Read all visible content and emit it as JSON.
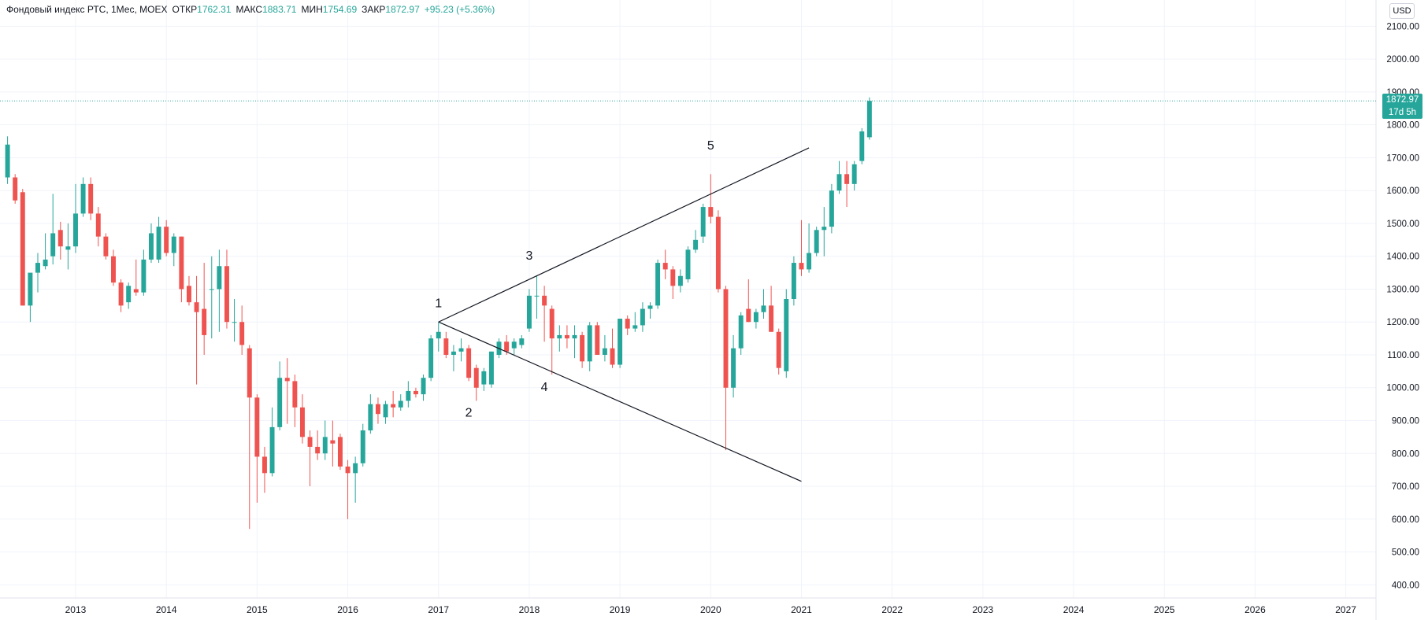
{
  "legend": {
    "title": "Фондовый индекс РТС, 1Мес, MOEX",
    "open_label": "ОТКР",
    "open": "1762.31",
    "high_label": "МАКС",
    "high": "1883.71",
    "low_label": "МИН",
    "low": "1754.69",
    "close_label": "ЗАКР",
    "close": "1872.97",
    "change": "+95.23 (+5.36%)"
  },
  "currency": "USD",
  "last_price": {
    "value": "1872.97",
    "countdown": "17d 5h"
  },
  "colors": {
    "up": "#26a69a",
    "down": "#ef5350",
    "grid": "#f0f3fa",
    "line": "#131722"
  },
  "chart_data": {
    "type": "candlestick",
    "interval": "1M",
    "ylim": [
      360,
      2180
    ],
    "y_ticks": [
      "2100.00",
      "2000.00",
      "1900.00",
      "1800.00",
      "1700.00",
      "1600.00",
      "1500.00",
      "1400.00",
      "1300.00",
      "1200.00",
      "1100.00",
      "1000.00",
      "900.00",
      "800.00",
      "700.00",
      "600.00",
      "500.00",
      "400.00"
    ],
    "x_ticks": [
      "2013",
      "2014",
      "2015",
      "2016",
      "2017",
      "2018",
      "2019",
      "2020",
      "2021",
      "2022",
      "2023",
      "2024",
      "2025",
      "2026",
      "2027"
    ],
    "x_range": [
      "2012-03",
      "2027-05"
    ],
    "grid": true,
    "candles": [
      {
        "t": "2012-04",
        "o": 1640,
        "h": 1765,
        "l": 1620,
        "c": 1740
      },
      {
        "t": "2012-05",
        "o": 1640,
        "h": 1650,
        "l": 1560,
        "c": 1570
      },
      {
        "t": "2012-06",
        "o": 1595,
        "h": 1605,
        "l": 1250,
        "c": 1250
      },
      {
        "t": "2012-07",
        "o": 1250,
        "h": 1340,
        "l": 1200,
        "c": 1350
      },
      {
        "t": "2012-08",
        "o": 1350,
        "h": 1410,
        "l": 1290,
        "c": 1380
      },
      {
        "t": "2012-09",
        "o": 1370,
        "h": 1470,
        "l": 1360,
        "c": 1390
      },
      {
        "t": "2012-10",
        "o": 1400,
        "h": 1590,
        "l": 1375,
        "c": 1470
      },
      {
        "t": "2012-11",
        "o": 1480,
        "h": 1505,
        "l": 1390,
        "c": 1430
      },
      {
        "t": "2012-12",
        "o": 1420,
        "h": 1500,
        "l": 1360,
        "c": 1430
      },
      {
        "t": "2013-01",
        "o": 1430,
        "h": 1620,
        "l": 1410,
        "c": 1530
      },
      {
        "t": "2013-02",
        "o": 1530,
        "h": 1640,
        "l": 1520,
        "c": 1620
      },
      {
        "t": "2013-03",
        "o": 1620,
        "h": 1640,
        "l": 1510,
        "c": 1530
      },
      {
        "t": "2013-04",
        "o": 1530,
        "h": 1550,
        "l": 1430,
        "c": 1460
      },
      {
        "t": "2013-05",
        "o": 1460,
        "h": 1470,
        "l": 1390,
        "c": 1400
      },
      {
        "t": "2013-06",
        "o": 1400,
        "h": 1420,
        "l": 1310,
        "c": 1320
      },
      {
        "t": "2013-07",
        "o": 1320,
        "h": 1330,
        "l": 1230,
        "c": 1250
      },
      {
        "t": "2013-08",
        "o": 1260,
        "h": 1320,
        "l": 1240,
        "c": 1310
      },
      {
        "t": "2013-09",
        "o": 1300,
        "h": 1390,
        "l": 1280,
        "c": 1290
      },
      {
        "t": "2013-10",
        "o": 1290,
        "h": 1420,
        "l": 1280,
        "c": 1390
      },
      {
        "t": "2013-11",
        "o": 1390,
        "h": 1500,
        "l": 1380,
        "c": 1470
      },
      {
        "t": "2013-12",
        "o": 1390,
        "h": 1520,
        "l": 1380,
        "c": 1490
      },
      {
        "t": "2014-01",
        "o": 1490,
        "h": 1510,
        "l": 1400,
        "c": 1410
      },
      {
        "t": "2014-02",
        "o": 1410,
        "h": 1470,
        "l": 1370,
        "c": 1460
      },
      {
        "t": "2014-03",
        "o": 1460,
        "h": 1460,
        "l": 1260,
        "c": 1300
      },
      {
        "t": "2014-04",
        "o": 1310,
        "h": 1340,
        "l": 1250,
        "c": 1260
      },
      {
        "t": "2014-05",
        "o": 1260,
        "h": 1340,
        "l": 1010,
        "c": 1230
      },
      {
        "t": "2014-06",
        "o": 1240,
        "h": 1380,
        "l": 1100,
        "c": 1160
      },
      {
        "t": "2014-07",
        "o": 1300,
        "h": 1400,
        "l": 1150,
        "c": 1300
      },
      {
        "t": "2014-08",
        "o": 1300,
        "h": 1420,
        "l": 1170,
        "c": 1370
      },
      {
        "t": "2014-09",
        "o": 1370,
        "h": 1420,
        "l": 1180,
        "c": 1200
      },
      {
        "t": "2014-10",
        "o": 1200,
        "h": 1270,
        "l": 1140,
        "c": 1200
      },
      {
        "t": "2014-11",
        "o": 1200,
        "h": 1250,
        "l": 1100,
        "c": 1130
      },
      {
        "t": "2014-12",
        "o": 1120,
        "h": 1130,
        "l": 570,
        "c": 970
      },
      {
        "t": "2015-01",
        "o": 970,
        "h": 980,
        "l": 650,
        "c": 790
      },
      {
        "t": "2015-02",
        "o": 790,
        "h": 820,
        "l": 680,
        "c": 740
      },
      {
        "t": "2015-03",
        "o": 740,
        "h": 940,
        "l": 730,
        "c": 880
      },
      {
        "t": "2015-04",
        "o": 880,
        "h": 1080,
        "l": 870,
        "c": 1030
      },
      {
        "t": "2015-05",
        "o": 1030,
        "h": 1090,
        "l": 890,
        "c": 1020
      },
      {
        "t": "2015-06",
        "o": 1020,
        "h": 1040,
        "l": 880,
        "c": 940
      },
      {
        "t": "2015-07",
        "o": 940,
        "h": 980,
        "l": 830,
        "c": 850
      },
      {
        "t": "2015-08",
        "o": 850,
        "h": 870,
        "l": 700,
        "c": 820
      },
      {
        "t": "2015-09",
        "o": 820,
        "h": 870,
        "l": 780,
        "c": 800
      },
      {
        "t": "2015-10",
        "o": 800,
        "h": 900,
        "l": 780,
        "c": 850
      },
      {
        "t": "2015-11",
        "o": 840,
        "h": 900,
        "l": 760,
        "c": 830
      },
      {
        "t": "2015-12",
        "o": 850,
        "h": 860,
        "l": 750,
        "c": 760
      },
      {
        "t": "2016-01",
        "o": 760,
        "h": 780,
        "l": 600,
        "c": 740
      },
      {
        "t": "2016-02",
        "o": 740,
        "h": 790,
        "l": 650,
        "c": 770
      },
      {
        "t": "2016-03",
        "o": 770,
        "h": 890,
        "l": 760,
        "c": 870
      },
      {
        "t": "2016-04",
        "o": 870,
        "h": 980,
        "l": 860,
        "c": 950
      },
      {
        "t": "2016-05",
        "o": 950,
        "h": 970,
        "l": 890,
        "c": 920
      },
      {
        "t": "2016-06",
        "o": 910,
        "h": 960,
        "l": 890,
        "c": 950
      },
      {
        "t": "2016-07",
        "o": 950,
        "h": 990,
        "l": 910,
        "c": 940
      },
      {
        "t": "2016-08",
        "o": 940,
        "h": 980,
        "l": 930,
        "c": 960
      },
      {
        "t": "2016-09",
        "o": 960,
        "h": 1020,
        "l": 940,
        "c": 990
      },
      {
        "t": "2016-10",
        "o": 990,
        "h": 1000,
        "l": 970,
        "c": 980
      },
      {
        "t": "2016-11",
        "o": 980,
        "h": 1040,
        "l": 960,
        "c": 1030
      },
      {
        "t": "2016-12",
        "o": 1030,
        "h": 1160,
        "l": 1020,
        "c": 1150
      },
      {
        "t": "2017-01",
        "o": 1150,
        "h": 1200,
        "l": 1110,
        "c": 1170
      },
      {
        "t": "2017-02",
        "o": 1150,
        "h": 1170,
        "l": 1090,
        "c": 1100
      },
      {
        "t": "2017-03",
        "o": 1100,
        "h": 1130,
        "l": 1050,
        "c": 1110
      },
      {
        "t": "2017-04",
        "o": 1110,
        "h": 1150,
        "l": 1080,
        "c": 1120
      },
      {
        "t": "2017-05",
        "o": 1120,
        "h": 1130,
        "l": 1020,
        "c": 1030
      },
      {
        "t": "2017-06",
        "o": 1060,
        "h": 1070,
        "l": 960,
        "c": 1000
      },
      {
        "t": "2017-07",
        "o": 1010,
        "h": 1060,
        "l": 990,
        "c": 1050
      },
      {
        "t": "2017-08",
        "o": 1010,
        "h": 1110,
        "l": 1000,
        "c": 1110
      },
      {
        "t": "2017-09",
        "o": 1100,
        "h": 1150,
        "l": 1090,
        "c": 1140
      },
      {
        "t": "2017-10",
        "o": 1140,
        "h": 1160,
        "l": 1100,
        "c": 1110
      },
      {
        "t": "2017-11",
        "o": 1120,
        "h": 1150,
        "l": 1100,
        "c": 1140
      },
      {
        "t": "2017-12",
        "o": 1130,
        "h": 1160,
        "l": 1120,
        "c": 1150
      },
      {
        "t": "2018-01",
        "o": 1180,
        "h": 1300,
        "l": 1170,
        "c": 1280
      },
      {
        "t": "2018-02",
        "o": 1280,
        "h": 1340,
        "l": 1210,
        "c": 1280
      },
      {
        "t": "2018-03",
        "o": 1280,
        "h": 1310,
        "l": 1140,
        "c": 1250
      },
      {
        "t": "2018-04",
        "o": 1240,
        "h": 1250,
        "l": 1040,
        "c": 1150
      },
      {
        "t": "2018-05",
        "o": 1150,
        "h": 1190,
        "l": 1110,
        "c": 1160
      },
      {
        "t": "2018-06",
        "o": 1160,
        "h": 1190,
        "l": 1120,
        "c": 1150
      },
      {
        "t": "2018-07",
        "o": 1150,
        "h": 1190,
        "l": 1090,
        "c": 1160
      },
      {
        "t": "2018-08",
        "o": 1160,
        "h": 1170,
        "l": 1060,
        "c": 1080
      },
      {
        "t": "2018-09",
        "o": 1080,
        "h": 1200,
        "l": 1050,
        "c": 1190
      },
      {
        "t": "2018-10",
        "o": 1190,
        "h": 1200,
        "l": 1100,
        "c": 1100
      },
      {
        "t": "2018-11",
        "o": 1100,
        "h": 1160,
        "l": 1080,
        "c": 1120
      },
      {
        "t": "2018-12",
        "o": 1120,
        "h": 1180,
        "l": 1060,
        "c": 1070
      },
      {
        "t": "2019-01",
        "o": 1070,
        "h": 1210,
        "l": 1060,
        "c": 1210
      },
      {
        "t": "2019-02",
        "o": 1210,
        "h": 1220,
        "l": 1160,
        "c": 1180
      },
      {
        "t": "2019-03",
        "o": 1180,
        "h": 1230,
        "l": 1170,
        "c": 1190
      },
      {
        "t": "2019-04",
        "o": 1190,
        "h": 1260,
        "l": 1170,
        "c": 1240
      },
      {
        "t": "2019-05",
        "o": 1240,
        "h": 1260,
        "l": 1210,
        "c": 1250
      },
      {
        "t": "2019-06",
        "o": 1250,
        "h": 1390,
        "l": 1240,
        "c": 1380
      },
      {
        "t": "2019-07",
        "o": 1380,
        "h": 1420,
        "l": 1330,
        "c": 1360
      },
      {
        "t": "2019-08",
        "o": 1360,
        "h": 1370,
        "l": 1270,
        "c": 1310
      },
      {
        "t": "2019-09",
        "o": 1310,
        "h": 1360,
        "l": 1290,
        "c": 1340
      },
      {
        "t": "2019-10",
        "o": 1330,
        "h": 1430,
        "l": 1320,
        "c": 1420
      },
      {
        "t": "2019-11",
        "o": 1420,
        "h": 1480,
        "l": 1410,
        "c": 1450
      },
      {
        "t": "2019-12",
        "o": 1460,
        "h": 1560,
        "l": 1440,
        "c": 1550
      },
      {
        "t": "2020-01",
        "o": 1550,
        "h": 1650,
        "l": 1500,
        "c": 1520
      },
      {
        "t": "2020-02",
        "o": 1520,
        "h": 1540,
        "l": 1290,
        "c": 1300
      },
      {
        "t": "2020-03",
        "o": 1300,
        "h": 1310,
        "l": 810,
        "c": 1000
      },
      {
        "t": "2020-04",
        "o": 1000,
        "h": 1160,
        "l": 970,
        "c": 1120
      },
      {
        "t": "2020-05",
        "o": 1120,
        "h": 1230,
        "l": 1100,
        "c": 1220
      },
      {
        "t": "2020-06",
        "o": 1240,
        "h": 1330,
        "l": 1200,
        "c": 1200
      },
      {
        "t": "2020-07",
        "o": 1200,
        "h": 1240,
        "l": 1180,
        "c": 1230
      },
      {
        "t": "2020-08",
        "o": 1230,
        "h": 1300,
        "l": 1210,
        "c": 1250
      },
      {
        "t": "2020-09",
        "o": 1250,
        "h": 1310,
        "l": 1170,
        "c": 1170
      },
      {
        "t": "2020-10",
        "o": 1170,
        "h": 1180,
        "l": 1040,
        "c": 1060
      },
      {
        "t": "2020-11",
        "o": 1050,
        "h": 1300,
        "l": 1030,
        "c": 1270
      },
      {
        "t": "2020-12",
        "o": 1270,
        "h": 1400,
        "l": 1250,
        "c": 1380
      },
      {
        "t": "2021-01",
        "o": 1380,
        "h": 1510,
        "l": 1340,
        "c": 1360
      },
      {
        "t": "2021-02",
        "o": 1360,
        "h": 1500,
        "l": 1350,
        "c": 1410
      },
      {
        "t": "2021-03",
        "o": 1410,
        "h": 1490,
        "l": 1400,
        "c": 1480
      },
      {
        "t": "2021-04",
        "o": 1480,
        "h": 1550,
        "l": 1400,
        "c": 1490
      },
      {
        "t": "2021-05",
        "o": 1490,
        "h": 1620,
        "l": 1470,
        "c": 1600
      },
      {
        "t": "2021-06",
        "o": 1600,
        "h": 1690,
        "l": 1590,
        "c": 1650
      },
      {
        "t": "2021-07",
        "o": 1650,
        "h": 1690,
        "l": 1550,
        "c": 1620
      },
      {
        "t": "2021-08",
        "o": 1620,
        "h": 1690,
        "l": 1600,
        "c": 1680
      },
      {
        "t": "2021-09",
        "o": 1690,
        "h": 1790,
        "l": 1680,
        "c": 1780
      },
      {
        "t": "2021-10",
        "o": 1762.31,
        "h": 1883.71,
        "l": 1754.69,
        "c": 1872.97
      }
    ],
    "last_close": 1872.97,
    "trendlines": [
      {
        "from": {
          "t": "2017-01",
          "v": 1200
        },
        "to": {
          "t": "2021-02",
          "v": 1730
        }
      },
      {
        "from": {
          "t": "2017-01",
          "v": 1200
        },
        "to": {
          "t": "2021-01",
          "v": 715
        }
      }
    ],
    "annotations": [
      {
        "text": "1",
        "t": "2017-01",
        "v": 1245
      },
      {
        "text": "2",
        "t": "2017-05",
        "v": 912
      },
      {
        "text": "3",
        "t": "2018-01",
        "v": 1390
      },
      {
        "text": "4",
        "t": "2018-03",
        "v": 990
      },
      {
        "text": "5",
        "t": "2020-01",
        "v": 1725
      }
    ]
  }
}
